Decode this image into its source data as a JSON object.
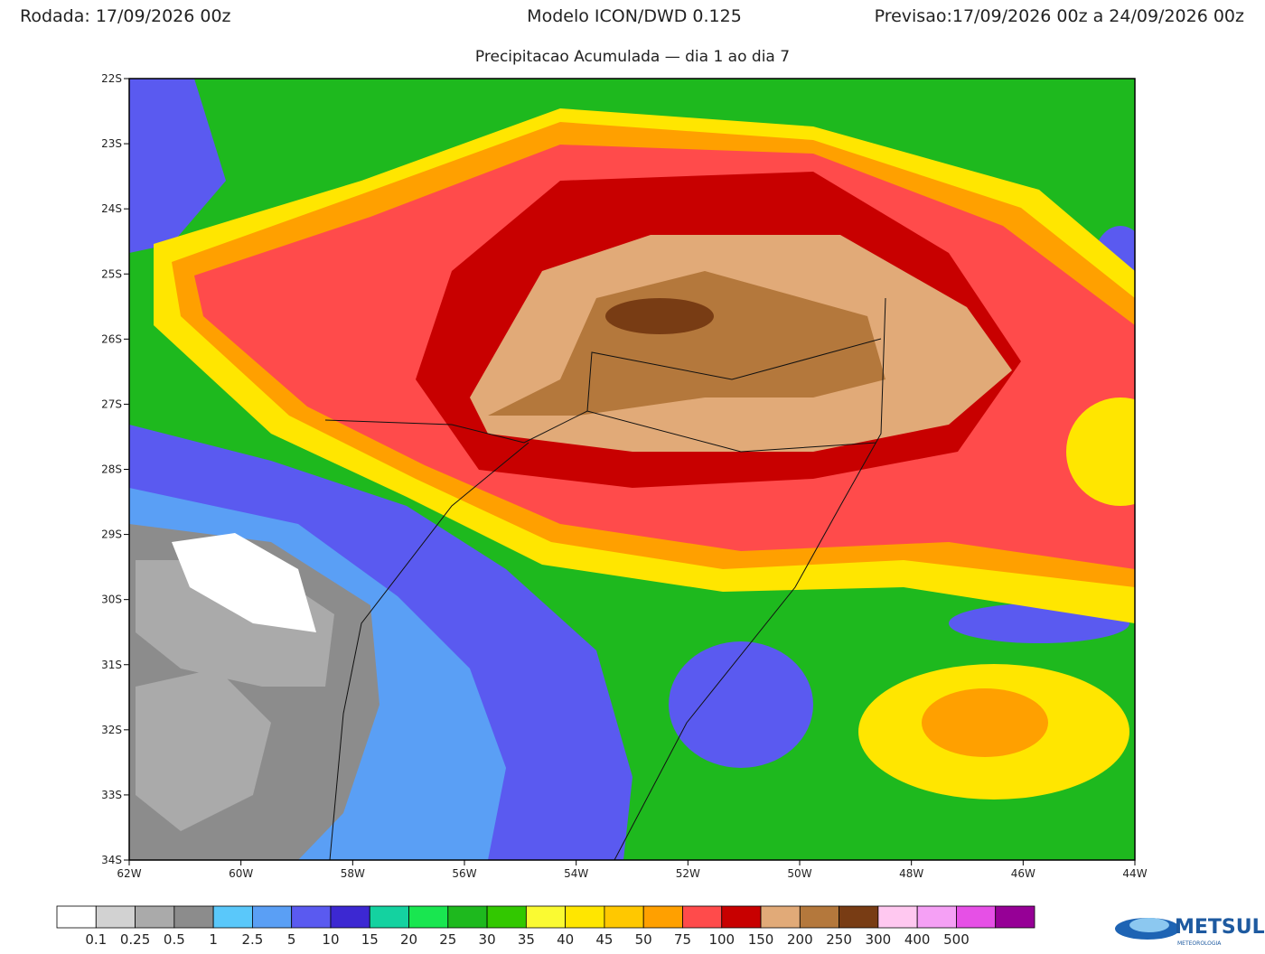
{
  "header": {
    "run": "Rodada: 17/09/2026 00z",
    "model": "Modelo ICON/DWD 0.125",
    "forecast": "Previsao:17/09/2026 00z a 24/09/2026 00z",
    "subtitle": "Precipitacao Acumulada — dia 1 ao dia 7"
  },
  "map": {
    "lat_labels": [
      "22S",
      "23S",
      "24S",
      "25S",
      "26S",
      "27S",
      "28S",
      "29S",
      "30S",
      "31S",
      "32S",
      "33S",
      "34S"
    ],
    "lon_labels": [
      "62W",
      "60W",
      "58W",
      "56W",
      "54W",
      "52W",
      "50W",
      "48W",
      "46W",
      "44W"
    ]
  },
  "legend": {
    "colors": [
      "#ffffff",
      "#d2d2d2",
      "#aaaaaa",
      "#8c8c8c",
      "#5ac8fa",
      "#5a9ff5",
      "#5a5af0",
      "#3c28d2",
      "#14d2a0",
      "#19e650",
      "#1eb91e",
      "#32c800",
      "#fafa32",
      "#ffe600",
      "#ffc800",
      "#ffa000",
      "#ff4b4b",
      "#c80000",
      "#e1aa78",
      "#b4783c",
      "#783c14",
      "#ffc8f0",
      "#f5a0f5",
      "#e650e6",
      "#960096"
    ],
    "labels": [
      "0.1",
      "0.25",
      "0.5",
      "1",
      "2.5",
      "5",
      "10",
      "15",
      "20",
      "25",
      "30",
      "35",
      "40",
      "45",
      "50",
      "75",
      "100",
      "150",
      "200",
      "250",
      "300",
      "400",
      "500"
    ]
  },
  "logo": {
    "name": "METSUL",
    "tagline": "METEOROLOGIA"
  }
}
